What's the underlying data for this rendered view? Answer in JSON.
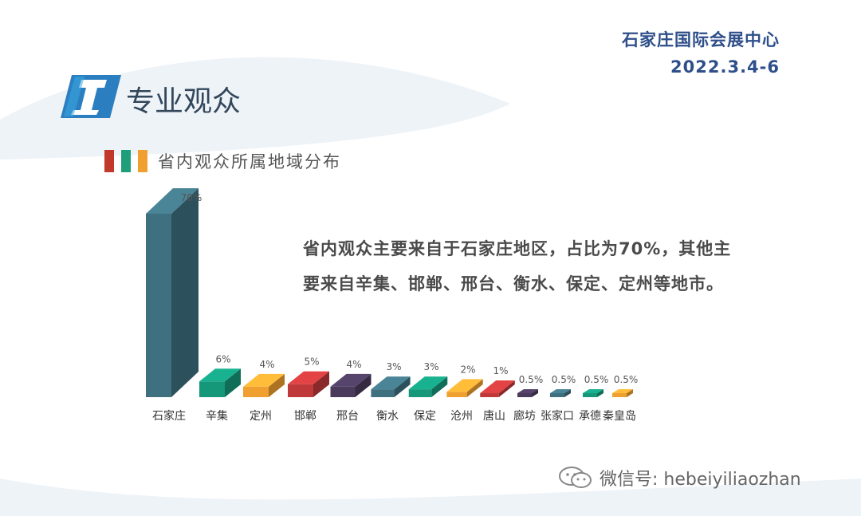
{
  "header": {
    "venue": "石家庄国际会展中心",
    "date": "2022.3.4-6",
    "section_title": "专业观众",
    "subtitle": "省内观众所属地域分布"
  },
  "summary": {
    "line1": "省内观众主要来自于石家庄地区，占比为70%，其他主",
    "line2": "要来自辛集、邯郸、邢台、衡水、保定、定州等地市。"
  },
  "watermark": {
    "text": "微信号: hebeiyiliaozhan"
  },
  "colors": {
    "accent": "#2f4f8a",
    "stripe_red": "#c0392b",
    "stripe_green": "#1f9e7a",
    "stripe_orange": "#f0a030"
  },
  "chart_data": {
    "type": "bar",
    "categories": [
      "石家庄",
      "辛集",
      "定州",
      "邯郸",
      "邢台",
      "衡水",
      "保定",
      "沧州",
      "唐山",
      "廊坊",
      "张家口",
      "承德",
      "秦皇岛"
    ],
    "values": [
      70,
      6,
      4,
      5,
      4,
      3,
      3,
      2,
      1,
      0.5,
      0.5,
      0.5,
      0.5
    ],
    "value_labels": [
      "70%",
      "6%",
      "4%",
      "5%",
      "4%",
      "3%",
      "3%",
      "2%",
      "1%",
      "0.5%",
      "0.5%",
      "0.5%",
      "0.5%"
    ],
    "colors": [
      "#3f7080",
      "#15977a",
      "#f0a030",
      "#c0393a",
      "#4a3a5c",
      "#3f7080",
      "#15977a",
      "#f0a030",
      "#c0393a",
      "#4a3a5c",
      "#3f7080",
      "#15977a",
      "#f0a030"
    ],
    "ylim": [
      0,
      70
    ]
  }
}
